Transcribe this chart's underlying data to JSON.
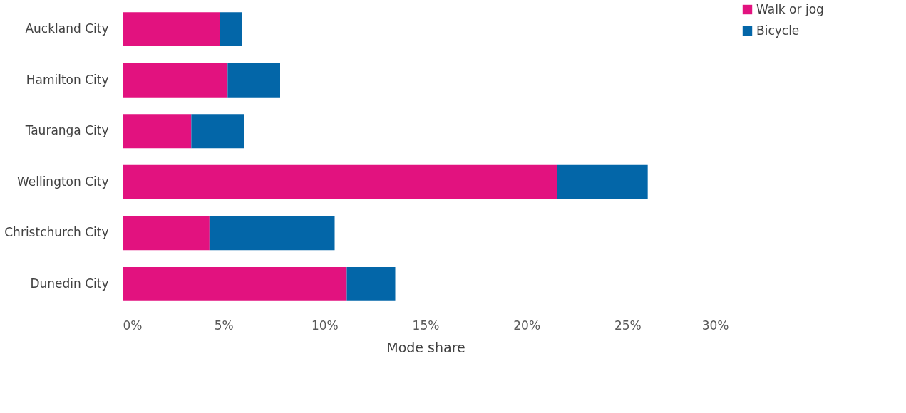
{
  "chart_data": {
    "type": "bar",
    "orientation": "horizontal",
    "stacked": true,
    "xlabel": "Mode share",
    "categories": [
      "Auckland City",
      "Hamilton City",
      "Tauranga City",
      "Wellington City",
      "Christchurch City",
      "Dunedin City"
    ],
    "series": [
      {
        "name": "Walk or jog",
        "color": "#e2127f",
        "values": [
          4.8,
          5.2,
          3.4,
          21.5,
          4.3,
          11.1
        ]
      },
      {
        "name": "Bicycle",
        "color": "#0366a8",
        "values": [
          1.1,
          2.6,
          2.6,
          4.5,
          6.2,
          2.4
        ]
      }
    ],
    "xlim": [
      0,
      30
    ],
    "xticks": [
      {
        "value": 0,
        "label": "0%"
      },
      {
        "value": 5,
        "label": "5%"
      },
      {
        "value": 10,
        "label": "10%"
      },
      {
        "value": 15,
        "label": "15%"
      },
      {
        "value": 20,
        "label": "20%"
      },
      {
        "value": 25,
        "label": "25%"
      },
      {
        "value": 30,
        "label": "30%"
      }
    ],
    "grid": false,
    "legend": "right"
  }
}
